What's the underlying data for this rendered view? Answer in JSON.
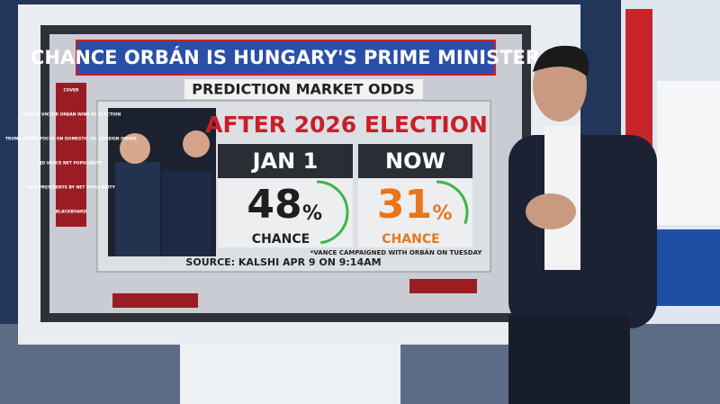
{
  "screen": {
    "title": "CHANCE ORBÁN IS HUNGARY'S PRIME MINISTER",
    "subtitle": "PREDICTION MARKET ODDS",
    "heading": "AFTER 2026 ELECTION",
    "columns": [
      {
        "label": "JAN 1",
        "value": 48,
        "unit": "%",
        "caption": "CHANCE"
      },
      {
        "label": "NOW",
        "value": 31,
        "unit": "%",
        "caption": "CHANCE"
      }
    ],
    "source": "SOURCE: KALSHI APR 9 ON 9:14AM",
    "footnote": "*VANCE CAMPAIGNED WITH ORBÁN ON TUESDAY",
    "sidebar": [
      "COVER",
      "CHANCE VIKTOR ORBÁN WINS RE-ELECTION",
      "TRUMP ADMIN FOCUS ON DOMESTIC VS. FOREIGN ISSUES",
      "JD VANCE NET POPULARITY",
      "VICE PRESIDENTS BY NET POPULARITY",
      "BLACKBOARD"
    ]
  }
}
